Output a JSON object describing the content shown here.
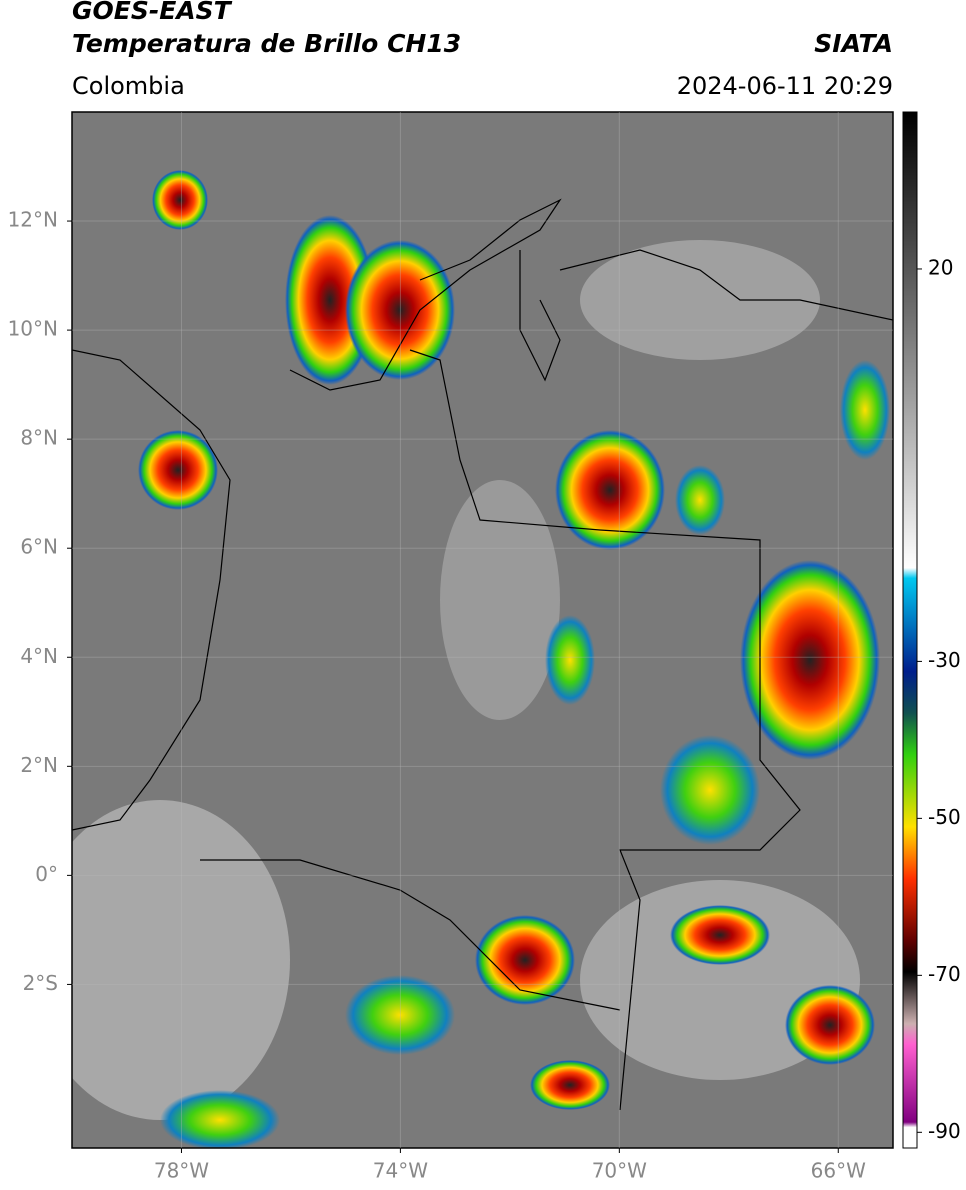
{
  "header": {
    "title": "GOES-EAST",
    "product": "Temperatura de Brillo CH13",
    "region": "Colombia",
    "source": "SIATA",
    "datetime": "2024-06-11 20:29"
  },
  "map": {
    "xlim": [
      -80,
      -65
    ],
    "ylim": [
      -5,
      14
    ],
    "xticks": [
      {
        "value": -78,
        "label": "78°W"
      },
      {
        "value": -74,
        "label": "74°W"
      },
      {
        "value": -70,
        "label": "70°W"
      },
      {
        "value": -66,
        "label": "66°W"
      }
    ],
    "yticks": [
      {
        "value": 12,
        "label": "12°N"
      },
      {
        "value": 10,
        "label": "10°N"
      },
      {
        "value": 8,
        "label": "8°N"
      },
      {
        "value": 6,
        "label": "6°N"
      },
      {
        "value": 4,
        "label": "4°N"
      },
      {
        "value": 2,
        "label": "2°N"
      },
      {
        "value": 0,
        "label": "0°"
      },
      {
        "value": -2,
        "label": "2°S"
      }
    ],
    "grid": true
  },
  "colorbar": {
    "lim": [
      -92,
      40
    ],
    "ticks": [
      20,
      -30,
      -50,
      -70,
      -90
    ]
  }
}
